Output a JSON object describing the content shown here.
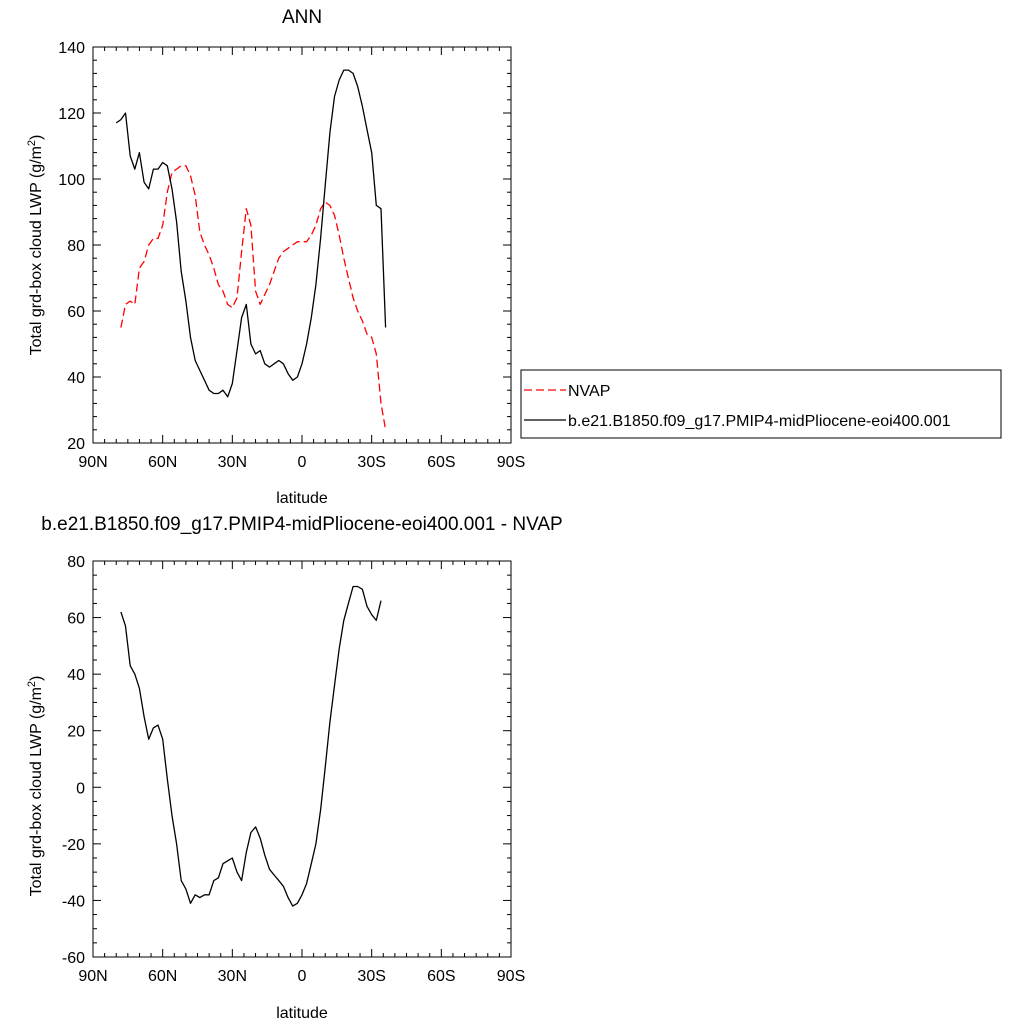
{
  "chart_data": [
    {
      "type": "line",
      "title": "ANN",
      "xlabel": "latitude",
      "ylabel": "Total grd-box cloud LWP (g/m²)",
      "ylim": [
        20,
        140
      ],
      "xlim": [
        90,
        -90
      ],
      "x_tick_values": [
        90,
        60,
        30,
        0,
        -30,
        -60,
        -90
      ],
      "x_tick_labels": [
        "90N",
        "60N",
        "30N",
        "0",
        "30S",
        "60S",
        "90S"
      ],
      "y_ticks": [
        20,
        40,
        60,
        80,
        100,
        120,
        140
      ],
      "legend_position": "right",
      "series": [
        {
          "name": "NVAP",
          "color": "#ff0000",
          "style": "dashed",
          "points": [
            [
              78,
              55
            ],
            [
              76,
              62
            ],
            [
              74,
              63
            ],
            [
              72,
              62
            ],
            [
              70,
              73
            ],
            [
              68,
              75
            ],
            [
              66,
              80
            ],
            [
              64,
              82
            ],
            [
              62,
              82
            ],
            [
              60,
              86
            ],
            [
              58,
              96
            ],
            [
              56,
              102
            ],
            [
              54,
              103
            ],
            [
              52,
              104
            ],
            [
              50,
              104
            ],
            [
              48,
              101
            ],
            [
              46,
              95
            ],
            [
              44,
              84
            ],
            [
              42,
              80
            ],
            [
              40,
              77
            ],
            [
              38,
              73
            ],
            [
              36,
              68
            ],
            [
              34,
              66
            ],
            [
              32,
              62
            ],
            [
              30,
              61
            ],
            [
              28,
              64
            ],
            [
              26,
              78
            ],
            [
              24,
              91
            ],
            [
              22,
              86
            ],
            [
              20,
              66
            ],
            [
              18,
              62
            ],
            [
              16,
              65
            ],
            [
              14,
              68
            ],
            [
              12,
              72
            ],
            [
              10,
              76
            ],
            [
              8,
              78
            ],
            [
              6,
              79
            ],
            [
              4,
              80
            ],
            [
              2,
              81
            ],
            [
              0,
              81
            ],
            [
              -2,
              81
            ],
            [
              -4,
              83
            ],
            [
              -6,
              86
            ],
            [
              -8,
              91
            ],
            [
              -10,
              93
            ],
            [
              -12,
              92
            ],
            [
              -14,
              89
            ],
            [
              -16,
              83
            ],
            [
              -18,
              76
            ],
            [
              -20,
              70
            ],
            [
              -22,
              64
            ],
            [
              -24,
              60
            ],
            [
              -26,
              57
            ],
            [
              -28,
              53
            ],
            [
              -30,
              52
            ],
            [
              -32,
              47
            ],
            [
              -34,
              32
            ],
            [
              -36,
              24
            ]
          ]
        },
        {
          "name": "b.e21.B1850.f09_g17.PMIP4-midPliocene-eoi400.001",
          "color": "#000000",
          "style": "solid",
          "points": [
            [
              80,
              117
            ],
            [
              78,
              118
            ],
            [
              76,
              120
            ],
            [
              74,
              107
            ],
            [
              72,
              103
            ],
            [
              70,
              108
            ],
            [
              68,
              99
            ],
            [
              66,
              97
            ],
            [
              64,
              103
            ],
            [
              62,
              103
            ],
            [
              60,
              105
            ],
            [
              58,
              104
            ],
            [
              56,
              97
            ],
            [
              54,
              87
            ],
            [
              52,
              72
            ],
            [
              50,
              63
            ],
            [
              48,
              52
            ],
            [
              46,
              45
            ],
            [
              44,
              42
            ],
            [
              42,
              39
            ],
            [
              40,
              36
            ],
            [
              38,
              35
            ],
            [
              36,
              35
            ],
            [
              34,
              36
            ],
            [
              32,
              34
            ],
            [
              30,
              38
            ],
            [
              28,
              48
            ],
            [
              26,
              58
            ],
            [
              24,
              62
            ],
            [
              22,
              50
            ],
            [
              20,
              47
            ],
            [
              18,
              48
            ],
            [
              16,
              44
            ],
            [
              14,
              43
            ],
            [
              12,
              44
            ],
            [
              10,
              45
            ],
            [
              8,
              44
            ],
            [
              6,
              41
            ],
            [
              4,
              39
            ],
            [
              2,
              40
            ],
            [
              0,
              44
            ],
            [
              -2,
              50
            ],
            [
              -4,
              58
            ],
            [
              -6,
              68
            ],
            [
              -8,
              82
            ],
            [
              -10,
              98
            ],
            [
              -12,
              114
            ],
            [
              -14,
              125
            ],
            [
              -16,
              130
            ],
            [
              -18,
              133
            ],
            [
              -20,
              133
            ],
            [
              -22,
              132
            ],
            [
              -24,
              128
            ],
            [
              -26,
              122
            ],
            [
              -28,
              115
            ],
            [
              -30,
              108
            ],
            [
              -32,
              92
            ],
            [
              -34,
              91
            ],
            [
              -36,
              55
            ]
          ]
        }
      ]
    },
    {
      "type": "line",
      "title": "b.e21.B1850.f09_g17.PMIP4-midPliocene-eoi400.001 - NVAP",
      "xlabel": "latitude",
      "ylabel": "Total grd-box cloud LWP (g/m²)",
      "ylim": [
        -60,
        80
      ],
      "xlim": [
        90,
        -90
      ],
      "x_tick_values": [
        90,
        60,
        30,
        0,
        -30,
        -60,
        -90
      ],
      "x_tick_labels": [
        "90N",
        "60N",
        "30N",
        "0",
        "30S",
        "60S",
        "90S"
      ],
      "y_ticks": [
        -60,
        -40,
        -20,
        0,
        20,
        40,
        60,
        80
      ],
      "series": [
        {
          "color": "#000000",
          "style": "solid",
          "points": [
            [
              78,
              62
            ],
            [
              76,
              57
            ],
            [
              74,
              43
            ],
            [
              72,
              40
            ],
            [
              70,
              35
            ],
            [
              68,
              25
            ],
            [
              66,
              17
            ],
            [
              64,
              21
            ],
            [
              62,
              22
            ],
            [
              60,
              17
            ],
            [
              58,
              3
            ],
            [
              56,
              -10
            ],
            [
              54,
              -20
            ],
            [
              52,
              -33
            ],
            [
              50,
              -36
            ],
            [
              48,
              -41
            ],
            [
              46,
              -38
            ],
            [
              44,
              -39
            ],
            [
              42,
              -38
            ],
            [
              40,
              -38
            ],
            [
              38,
              -33
            ],
            [
              36,
              -32
            ],
            [
              34,
              -27
            ],
            [
              32,
              -26
            ],
            [
              30,
              -25
            ],
            [
              28,
              -30
            ],
            [
              26,
              -33
            ],
            [
              24,
              -23
            ],
            [
              22,
              -16
            ],
            [
              20,
              -14
            ],
            [
              18,
              -18
            ],
            [
              16,
              -24
            ],
            [
              14,
              -29
            ],
            [
              12,
              -31
            ],
            [
              10,
              -33
            ],
            [
              8,
              -35
            ],
            [
              6,
              -39
            ],
            [
              4,
              -42
            ],
            [
              2,
              -41
            ],
            [
              0,
              -38
            ],
            [
              -2,
              -34
            ],
            [
              -4,
              -27
            ],
            [
              -6,
              -20
            ],
            [
              -8,
              -8
            ],
            [
              -10,
              7
            ],
            [
              -12,
              23
            ],
            [
              -14,
              36
            ],
            [
              -16,
              49
            ],
            [
              -18,
              59
            ],
            [
              -20,
              65
            ],
            [
              -22,
              71
            ],
            [
              -24,
              71
            ],
            [
              -26,
              70
            ],
            [
              -28,
              64
            ],
            [
              -30,
              61
            ],
            [
              -32,
              59
            ],
            [
              -34,
              66
            ]
          ]
        }
      ]
    }
  ]
}
